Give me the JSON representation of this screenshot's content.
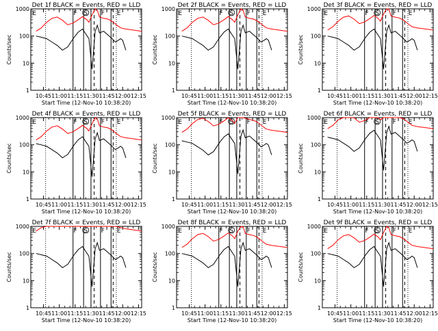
{
  "panel_titles": [
    "Det 1f BLACK = Events, RED = LLD",
    "Det 2f BLACK = Events, RED = LLD",
    "Det 3f BLACK = Events, RED = LLD",
    "Det 4f BLACK = Events, RED = LLD",
    "Det 5f BLACK = Events, RED = LLD",
    "Det 6f BLACK = Events, RED = LLD",
    "Det 7f BLACK = Events, RED = LLD",
    "Det 8f BLACK = Events, RED = LLD",
    "Det 9f BLACK = Events, RED = LLD"
  ],
  "xlabel": "Start Time (12-Nov-10 10:38:20)",
  "ylabel": "Counts/sec",
  "x_ticks": [
    "10:45",
    "11:00",
    "11:15",
    "11:30",
    "11:45",
    "12:00",
    "12:15"
  ],
  "y_ticks": [
    "1",
    "10",
    "100",
    "1000"
  ],
  "markers": [
    "E",
    "F",
    "S",
    "F",
    "E"
  ],
  "colors": {
    "events": "#000000",
    "lld": "#ff0000"
  },
  "chart_data": {
    "type": "line",
    "layout": "3x3 grid",
    "xlim_minutes": [
      -5,
      100
    ],
    "x_tick_minutes": [
      7,
      22,
      37,
      52,
      67,
      82,
      97
    ],
    "ylim": [
      1,
      1000
    ],
    "yscale": "log",
    "x_reference": "Start Time 12-Nov-10 10:38:20, x in minutes after start",
    "vertical_lines": {
      "dotted": [
        9,
        76
      ],
      "solid": [
        35,
        45,
        52,
        61,
        71
      ],
      "dashed": [
        55,
        73
      ]
    },
    "series": [
      {
        "name": "Events",
        "color": "#000000",
        "x": [
          0,
          5,
          10,
          15,
          20,
          25,
          30,
          33,
          36,
          40,
          44,
          47,
          50,
          53,
          56,
          58,
          60,
          64,
          68,
          72,
          75,
          78,
          80,
          82,
          85
        ],
        "y": [
          100,
          90,
          80,
          60,
          45,
          30,
          40,
          60,
          90,
          140,
          180,
          120,
          80,
          6,
          150,
          250,
          130,
          150,
          110,
          80,
          60,
          70,
          80,
          70,
          30
        ]
      },
      {
        "name": "LLD",
        "color": "#ff0000",
        "x": [
          0,
          5,
          10,
          15,
          20,
          25,
          30,
          35,
          40,
          44,
          48,
          50,
          53,
          56,
          58,
          60,
          64,
          68,
          72,
          76,
          80,
          85,
          90,
          95,
          100
        ],
        "y": [
          150,
          200,
          320,
          450,
          500,
          380,
          260,
          300,
          400,
          520,
          400,
          320,
          600,
          1000,
          900,
          500,
          450,
          420,
          350,
          260,
          200,
          180,
          170,
          160,
          150
        ]
      }
    ]
  }
}
